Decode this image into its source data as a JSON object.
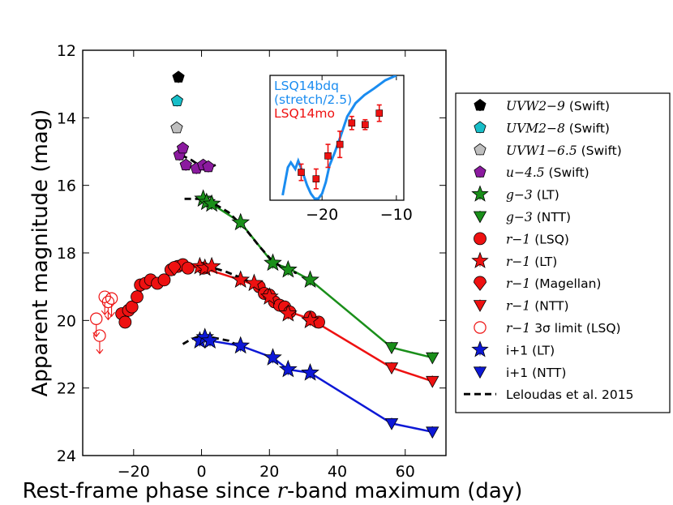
{
  "chart_data": {
    "type": "line",
    "xlabel_pre": "Rest-frame phase since ",
    "xlabel_var": "r",
    "xlabel_post": "-band maximum (day)",
    "ylabel": "Apparent magnitude (mag)",
    "xlim": [
      -35,
      72
    ],
    "ylim": [
      24,
      12
    ],
    "xticks": [
      -20,
      0,
      20,
      40,
      60
    ],
    "yticks": [
      12,
      14,
      16,
      18,
      20,
      22,
      24
    ],
    "xtick_labels": [
      "−20",
      "0",
      "20",
      "40",
      "60"
    ],
    "ytick_labels": [
      "12",
      "14",
      "16",
      "18",
      "20",
      "22",
      "24"
    ],
    "series": [
      {
        "name": "uvw2",
        "color": "#000000",
        "marker": "pentagon",
        "points": [
          [
            -6.8,
            12.8
          ]
        ]
      },
      {
        "name": "uvm2",
        "color": "#17bec8",
        "marker": "pentagon",
        "points": [
          [
            -7.2,
            13.5
          ]
        ]
      },
      {
        "name": "uvw1",
        "color": "#bfbfbf",
        "marker": "pentagon",
        "points": [
          [
            -7.3,
            14.3
          ]
        ]
      },
      {
        "name": "u",
        "color": "#8b1a9f",
        "marker": "pentagon",
        "points": [
          [
            -6.5,
            15.1
          ],
          [
            -5.5,
            14.9
          ],
          [
            -4.6,
            15.4
          ],
          [
            -1.5,
            15.5
          ],
          [
            0.5,
            15.4
          ],
          [
            2.0,
            15.45
          ]
        ]
      },
      {
        "name": "g_lt",
        "color": "#1a8f1a",
        "marker": "star",
        "points": [
          [
            0.5,
            16.4
          ],
          [
            1.5,
            16.5
          ],
          [
            3.0,
            16.55
          ],
          [
            11.5,
            17.1
          ],
          [
            21.0,
            18.3
          ],
          [
            25.5,
            18.5
          ],
          [
            32.0,
            18.8
          ]
        ]
      },
      {
        "name": "g_ntt",
        "color": "#1a8f1a",
        "marker": "tri-down",
        "points": [
          [
            56.0,
            20.8
          ],
          [
            68.0,
            21.1
          ]
        ]
      },
      {
        "name": "r_lsq",
        "color": "#ee1111",
        "marker": "circle",
        "points": [
          [
            -23.5,
            19.8
          ],
          [
            -22.5,
            20.05
          ],
          [
            -21.5,
            19.7
          ],
          [
            -20.5,
            19.6
          ],
          [
            -19.0,
            19.3
          ],
          [
            -18.0,
            18.95
          ],
          [
            -16.5,
            18.9
          ],
          [
            -15.0,
            18.8
          ],
          [
            -13.0,
            18.9
          ],
          [
            -11.0,
            18.8
          ],
          [
            -9.0,
            18.5
          ],
          [
            -7.0,
            18.4
          ],
          [
            -5.5,
            18.35
          ],
          [
            -4.0,
            18.45
          ],
          [
            0.5,
            18.45
          ],
          [
            17.0,
            19.0
          ],
          [
            18.5,
            19.2
          ],
          [
            20.0,
            19.25
          ],
          [
            21.5,
            19.45
          ],
          [
            23.0,
            19.55
          ],
          [
            24.5,
            19.6
          ],
          [
            26.0,
            19.75
          ],
          [
            32.0,
            19.9
          ],
          [
            34.5,
            20.05
          ]
        ]
      },
      {
        "name": "r_lt",
        "color": "#ee1111",
        "marker": "star",
        "points": [
          [
            -0.5,
            18.4
          ],
          [
            1.0,
            18.45
          ],
          [
            3.0,
            18.4
          ],
          [
            11.5,
            18.8
          ],
          [
            15.5,
            18.9
          ],
          [
            20.0,
            19.3
          ],
          [
            25.5,
            19.8
          ],
          [
            32.0,
            20.0
          ]
        ]
      },
      {
        "name": "r_magellan",
        "color": "#ee1111",
        "marker": "ball",
        "points": [
          [
            -8.0,
            18.45
          ]
        ]
      },
      {
        "name": "r_ntt",
        "color": "#ee1111",
        "marker": "tri-down",
        "points": [
          [
            56.0,
            21.4
          ],
          [
            68.0,
            21.8
          ]
        ]
      },
      {
        "name": "r_limit",
        "color": "#ee1111",
        "marker": "open-circle",
        "points": [
          [
            -31.0,
            19.95
          ],
          [
            -30.0,
            20.45
          ],
          [
            -28.5,
            19.3
          ],
          [
            -27.5,
            19.45
          ],
          [
            -26.5,
            19.35
          ]
        ]
      },
      {
        "name": "i_lt",
        "color": "#0d18d6",
        "marker": "star",
        "points": [
          [
            -0.5,
            20.6
          ],
          [
            1.0,
            20.5
          ],
          [
            2.5,
            20.6
          ],
          [
            11.5,
            20.75
          ],
          [
            21.0,
            21.1
          ],
          [
            25.5,
            21.45
          ],
          [
            32.0,
            21.55
          ]
        ]
      },
      {
        "name": "i_ntt",
        "color": "#0d18d6",
        "marker": "tri-down",
        "points": [
          [
            56.0,
            23.05
          ],
          [
            68.0,
            23.3
          ]
        ]
      }
    ],
    "model_lines": [
      {
        "name": "r_fit",
        "color": "#ee1111",
        "points": [
          [
            -23.5,
            19.95
          ],
          [
            -20.5,
            19.55
          ],
          [
            -17.0,
            19.0
          ],
          [
            -12.0,
            18.85
          ],
          [
            -8.0,
            18.5
          ],
          [
            -4.0,
            18.4
          ],
          [
            0.5,
            18.45
          ],
          [
            11.5,
            18.8
          ],
          [
            17.0,
            19.0
          ],
          [
            21.5,
            19.45
          ],
          [
            26.0,
            19.75
          ],
          [
            32.0,
            19.95
          ],
          [
            56.0,
            21.4
          ],
          [
            68.0,
            21.8
          ]
        ]
      },
      {
        "name": "g_fit",
        "color": "#1a8f1a",
        "points": [
          [
            0.5,
            16.45
          ],
          [
            3.0,
            16.55
          ],
          [
            11.5,
            17.1
          ],
          [
            21.0,
            18.3
          ],
          [
            25.5,
            18.45
          ],
          [
            32.0,
            18.8
          ],
          [
            56.0,
            20.8
          ],
          [
            68.0,
            21.1
          ]
        ]
      },
      {
        "name": "i_fit",
        "color": "#0d18d6",
        "points": [
          [
            -0.5,
            20.55
          ],
          [
            2.5,
            20.6
          ],
          [
            11.5,
            20.75
          ],
          [
            21.0,
            21.1
          ],
          [
            25.5,
            21.45
          ],
          [
            32.0,
            21.55
          ],
          [
            56.0,
            23.05
          ],
          [
            68.0,
            23.3
          ]
        ]
      }
    ],
    "template_lines": [
      {
        "name": "leloudas_g",
        "color": "#000000",
        "points": [
          [
            -5.0,
            16.4
          ],
          [
            -1.0,
            16.4
          ],
          [
            3.0,
            16.5
          ],
          [
            8.0,
            16.8
          ],
          [
            13.0,
            17.3
          ],
          [
            17.0,
            17.8
          ],
          [
            20.5,
            18.2
          ],
          [
            24.0,
            18.45
          ],
          [
            28.0,
            18.6
          ]
        ]
      },
      {
        "name": "leloudas_r",
        "color": "#000000",
        "points": [
          [
            -5.0,
            18.4
          ],
          [
            -2.0,
            18.35
          ],
          [
            2.0,
            18.4
          ],
          [
            7.0,
            18.55
          ],
          [
            12.0,
            18.75
          ],
          [
            16.0,
            18.95
          ],
          [
            20.0,
            19.25
          ],
          [
            25.0,
            19.6
          ],
          [
            28.0,
            19.75
          ]
        ]
      },
      {
        "name": "leloudas_i",
        "color": "#000000",
        "points": [
          [
            -5.5,
            20.7
          ],
          [
            -3.0,
            20.55
          ],
          [
            0.0,
            20.45
          ],
          [
            3.0,
            20.5
          ],
          [
            8.0,
            20.6
          ],
          [
            12.0,
            20.8
          ]
        ]
      },
      {
        "name": "leloudas_u",
        "color": "#000000",
        "points": [
          [
            -6.0,
            15.1
          ],
          [
            -3.0,
            15.25
          ],
          [
            0.0,
            15.45
          ],
          [
            3.0,
            15.45
          ],
          [
            5.0,
            15.35
          ]
        ]
      }
    ],
    "legend": [
      {
        "label": "UVW2−9",
        "suffix": " (Swift)",
        "math": true,
        "marker": "pentagon",
        "color": "#000000"
      },
      {
        "label": "UVM2−8",
        "suffix": " (Swift)",
        "math": true,
        "marker": "pentagon",
        "color": "#17bec8"
      },
      {
        "label": "UVW1−6.5",
        "suffix": " (Swift)",
        "math": true,
        "marker": "pentagon",
        "color": "#bfbfbf"
      },
      {
        "label": "u−4.5",
        "suffix": " (Swift)",
        "math": true,
        "marker": "pentagon",
        "color": "#8b1a9f"
      },
      {
        "label": "g−3",
        "suffix": " (LT)",
        "math": true,
        "marker": "star",
        "color": "#1a8f1a"
      },
      {
        "label": "g−3",
        "suffix": " (NTT)",
        "math": true,
        "marker": "tri-down",
        "color": "#1a8f1a"
      },
      {
        "label": "r−1",
        "suffix": " (LSQ)",
        "math": true,
        "marker": "circle",
        "color": "#ee1111"
      },
      {
        "label": "r−1",
        "suffix": " (LT)",
        "math": true,
        "marker": "star",
        "color": "#ee1111"
      },
      {
        "label": "r−1",
        "suffix": " (Magellan)",
        "math": true,
        "marker": "ball",
        "color": "#ee1111"
      },
      {
        "label": "r−1",
        "suffix": " (NTT)",
        "math": true,
        "marker": "tri-down",
        "color": "#ee1111"
      },
      {
        "label": "r−1",
        "suffix": " 3σ limit (LSQ)",
        "math": true,
        "marker": "open-circle",
        "color": "#ee1111"
      },
      {
        "label": "i+1",
        "suffix": " (LT)",
        "math": false,
        "marker": "star",
        "color": "#0d18d6"
      },
      {
        "label": "i+1",
        "suffix": " (NTT)",
        "math": false,
        "marker": "tri-down",
        "color": "#0d18d6"
      },
      {
        "label": "Leloudas et al. 2015",
        "suffix": "",
        "math": false,
        "marker": "dash",
        "color": "#000000"
      }
    ],
    "inset": {
      "xlim": [
        -27,
        -9
      ],
      "xticks": [
        -20,
        -10
      ],
      "xtick_labels": [
        "−20",
        "−10"
      ],
      "ylim": [
        20.3,
        12.7
      ],
      "labels": [
        {
          "text": "LSQ14bdq",
          "color": "#1a8cf0"
        },
        {
          "text": "(stretch/2.5)",
          "color": "#1a8cf0"
        },
        {
          "text": "LSQ14mo",
          "color": "#ee1111"
        }
      ],
      "template": {
        "name": "lsq14bdq",
        "color": "#1a8cf0",
        "points": [
          [
            -25.3,
            20.0
          ],
          [
            -24.6,
            18.3
          ],
          [
            -24.2,
            18.0
          ],
          [
            -23.6,
            18.4
          ],
          [
            -23.2,
            17.9
          ],
          [
            -22.6,
            18.6
          ],
          [
            -22.0,
            19.4
          ],
          [
            -21.5,
            19.9
          ],
          [
            -21.0,
            20.2
          ],
          [
            -20.5,
            20.2
          ],
          [
            -20.0,
            19.9
          ],
          [
            -19.5,
            19.2
          ],
          [
            -19.0,
            18.2
          ],
          [
            -18.3,
            17.4
          ],
          [
            -17.5,
            16.4
          ],
          [
            -16.6,
            15.2
          ],
          [
            -15.5,
            14.4
          ],
          [
            -14.3,
            13.9
          ],
          [
            -13.0,
            13.5
          ],
          [
            -11.5,
            13.0
          ],
          [
            -10.0,
            12.7
          ]
        ]
      },
      "data": {
        "name": "lsq14mo",
        "color": "#ee1111",
        "points": [
          [
            -22.8,
            18.6,
            0.5
          ],
          [
            -20.8,
            19.0,
            0.6
          ],
          [
            -19.2,
            17.6,
            0.7
          ],
          [
            -17.6,
            16.9,
            0.8
          ],
          [
            -16.0,
            15.6,
            0.4
          ],
          [
            -14.2,
            15.7,
            0.3
          ],
          [
            -12.3,
            15.0,
            0.5
          ]
        ]
      }
    }
  }
}
